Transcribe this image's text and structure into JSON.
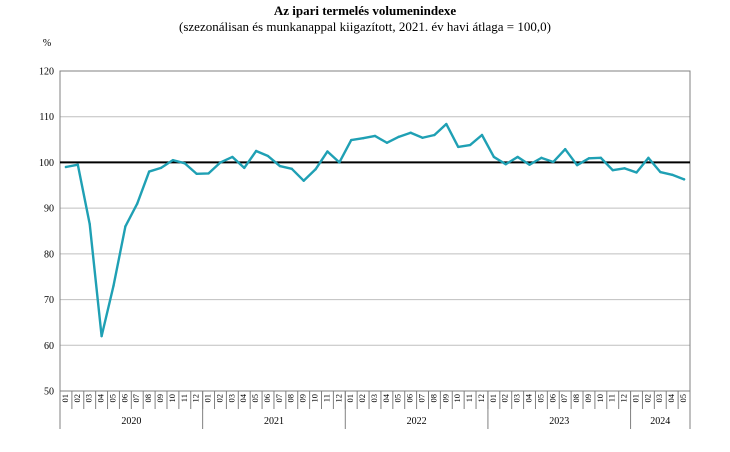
{
  "chart_data": {
    "type": "line",
    "title": "Az ipari termelés volumenindexe",
    "subtitle": "(szezonálisan és munkanappal kiigazított, 2021. év havi átlaga = 100,0)",
    "ylabel": "%",
    "xlabel": "",
    "ylim": [
      50,
      120
    ],
    "yticks": [
      50,
      60,
      70,
      80,
      90,
      100,
      110,
      120
    ],
    "grid": true,
    "reference_line": 100,
    "colors": {
      "series": "#1fa0b4",
      "reference": "#000000",
      "grid": "#bfbfbf"
    },
    "x": [
      "01",
      "02",
      "03",
      "04",
      "05",
      "06",
      "07",
      "08",
      "09",
      "10",
      "11",
      "12",
      "01",
      "02",
      "03",
      "04",
      "05",
      "06",
      "07",
      "08",
      "09",
      "10",
      "11",
      "12",
      "01",
      "02",
      "03",
      "04",
      "05",
      "06",
      "07",
      "08",
      "09",
      "10",
      "11",
      "12",
      "01",
      "02",
      "03",
      "04",
      "05",
      "06",
      "07",
      "08",
      "09",
      "10",
      "11",
      "12",
      "01",
      "02",
      "03",
      "04",
      "05"
    ],
    "years": [
      {
        "label": "2020",
        "count": 12
      },
      {
        "label": "2021",
        "count": 12
      },
      {
        "label": "2022",
        "count": 12
      },
      {
        "label": "2023",
        "count": 12
      },
      {
        "label": "2024",
        "count": 5
      }
    ],
    "series": [
      {
        "values": [
          99.0,
          99.5,
          86.5,
          62.0,
          73.0,
          86.0,
          91.0,
          98.0,
          98.8,
          100.5,
          99.8,
          97.5,
          97.6,
          100.0,
          101.2,
          98.8,
          102.5,
          101.4,
          99.2,
          98.6,
          96.0,
          98.5,
          102.4,
          100.0,
          104.9,
          105.3,
          105.8,
          104.3,
          105.6,
          106.5,
          105.4,
          106.0,
          108.4,
          103.4,
          103.8,
          106.0,
          101.2,
          99.6,
          101.2,
          99.5,
          101.0,
          100.1,
          102.9,
          99.4,
          100.9,
          101.0,
          98.3,
          98.7,
          97.8,
          101.0,
          97.9,
          97.3,
          96.3
        ]
      }
    ]
  }
}
